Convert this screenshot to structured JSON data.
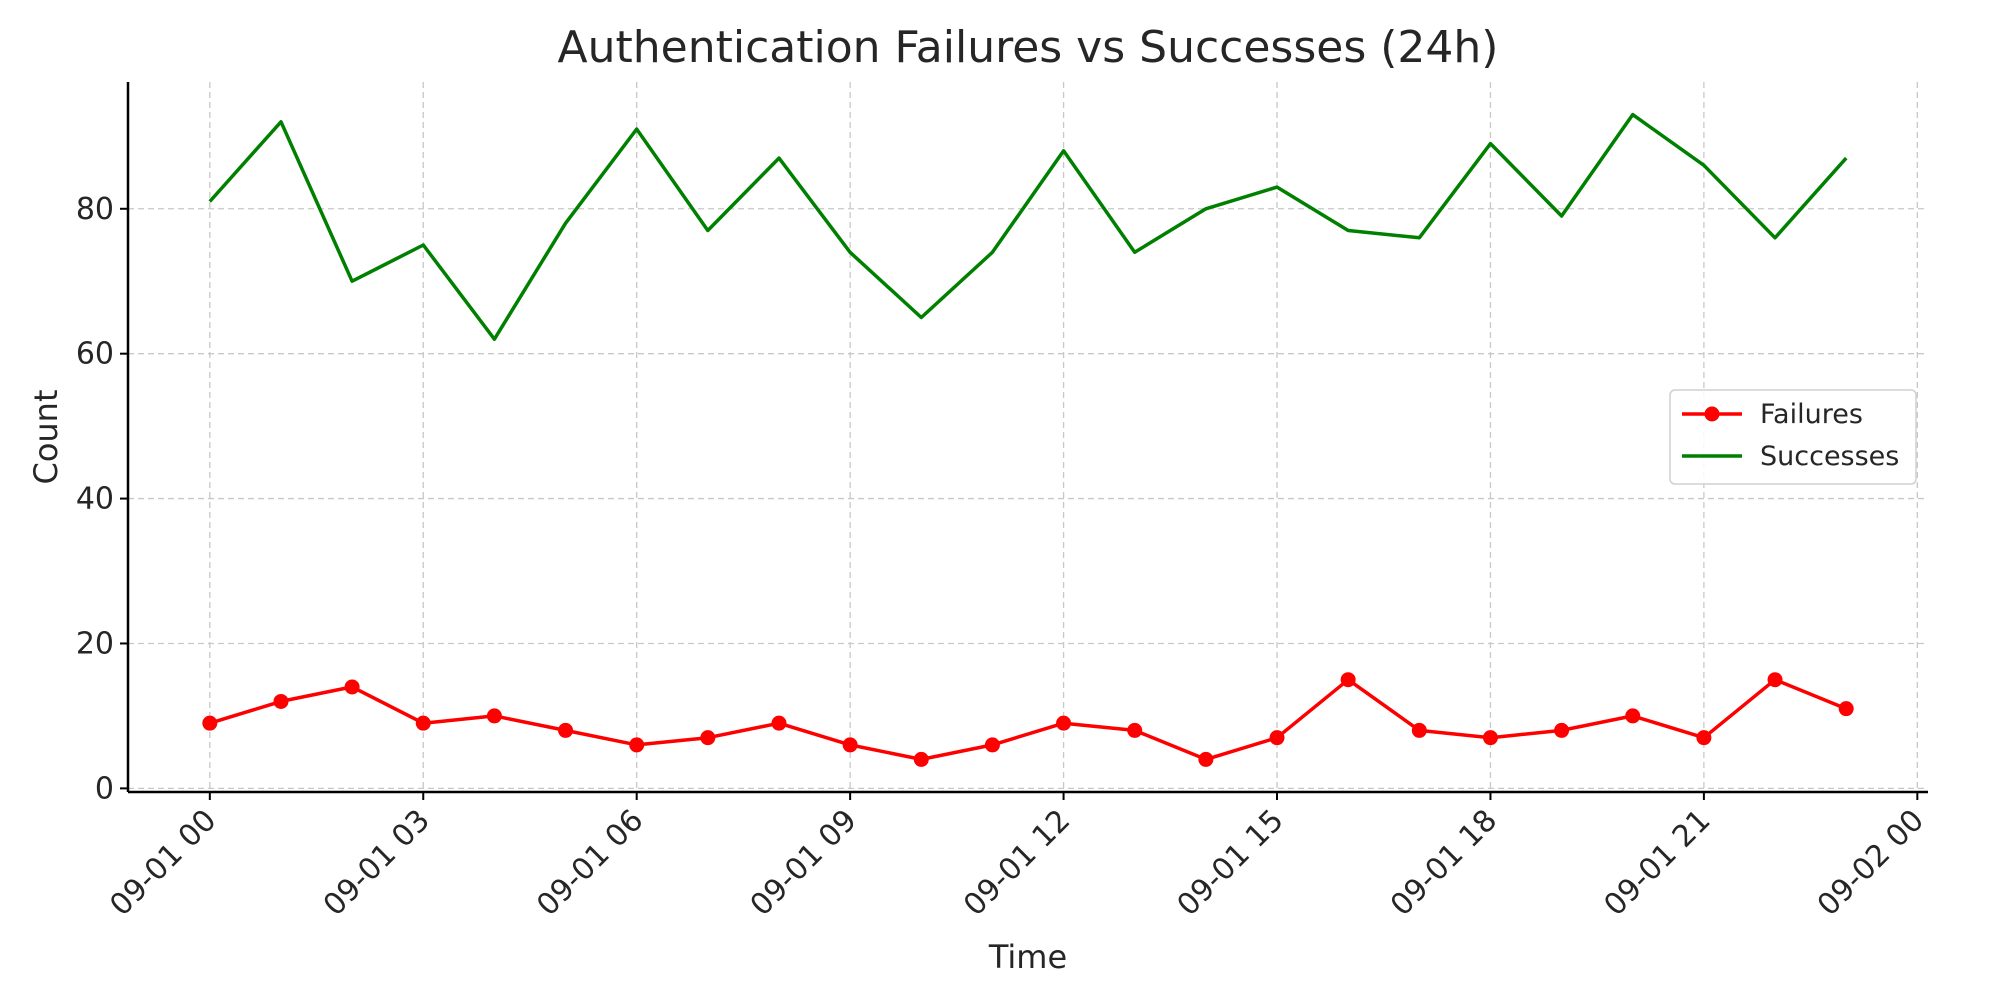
{
  "chart_data": {
    "type": "line",
    "title": "Authentication Failures vs Successes (24h)",
    "xlabel": "Time",
    "ylabel": "Count",
    "x": [
      "09-01 00",
      "09-01 01",
      "09-01 02",
      "09-01 03",
      "09-01 04",
      "09-01 05",
      "09-01 06",
      "09-01 07",
      "09-01 08",
      "09-01 09",
      "09-01 10",
      "09-01 11",
      "09-01 12",
      "09-01 13",
      "09-01 14",
      "09-01 15",
      "09-01 16",
      "09-01 17",
      "09-01 18",
      "09-01 19",
      "09-01 20",
      "09-01 21",
      "09-01 22",
      "09-01 23"
    ],
    "x_hours": [
      0,
      1,
      2,
      3,
      4,
      5,
      6,
      7,
      8,
      9,
      10,
      11,
      12,
      13,
      14,
      15,
      16,
      17,
      18,
      19,
      20,
      21,
      22,
      23
    ],
    "xlim_hours": [
      -1.15,
      24.15
    ],
    "x_ticks": [
      {
        "hour": 0,
        "label": "09-01 00"
      },
      {
        "hour": 3,
        "label": "09-01 03"
      },
      {
        "hour": 6,
        "label": "09-01 06"
      },
      {
        "hour": 9,
        "label": "09-01 09"
      },
      {
        "hour": 12,
        "label": "09-01 12"
      },
      {
        "hour": 15,
        "label": "09-01 15"
      },
      {
        "hour": 18,
        "label": "09-01 18"
      },
      {
        "hour": 21,
        "label": "09-01 21"
      },
      {
        "hour": 24,
        "label": "09-02 00"
      }
    ],
    "ylim": [
      -0.5,
      97.5
    ],
    "y_ticks": [
      0,
      20,
      40,
      60,
      80
    ],
    "grid": true,
    "legend_position": "center-right",
    "series": [
      {
        "name": "Failures",
        "color": "#ff0000",
        "marker": "circle",
        "values": [
          9,
          12,
          14,
          9,
          10,
          8,
          6,
          7,
          9,
          6,
          4,
          6,
          9,
          8,
          4,
          7,
          15,
          8,
          7,
          8,
          10,
          7,
          15,
          11
        ]
      },
      {
        "name": "Successes",
        "color": "#008000",
        "marker": "none",
        "values": [
          81,
          92,
          70,
          75,
          62,
          78,
          91,
          77,
          87,
          74,
          65,
          74,
          88,
          74,
          80,
          83,
          77,
          76,
          89,
          79,
          93,
          86,
          76,
          87
        ]
      }
    ]
  }
}
